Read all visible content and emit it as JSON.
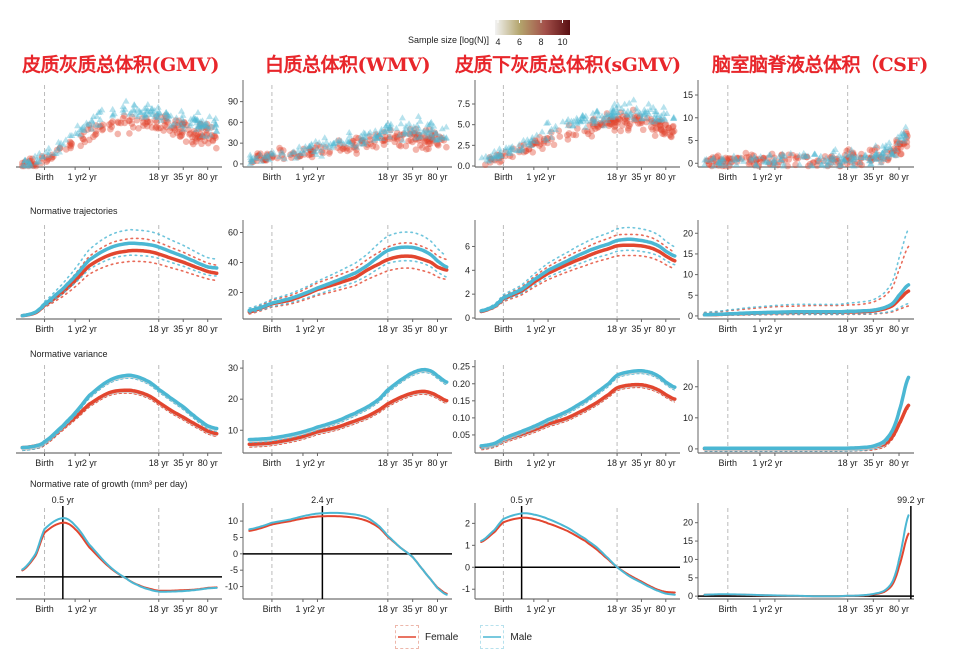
{
  "colors": {
    "female": "#e2462f",
    "male": "#4bb7d3",
    "grid": "#bbbbbb",
    "colorbar": [
      "#f2f2f2",
      "#b3a46c",
      "#a3504a",
      "#5a0f12"
    ]
  },
  "column_titles": [
    "皮质灰质总体积(GMV)",
    "白质总体积(WMV)",
    "皮质下灰质总体积(sGMV)",
    "脑室脑脊液总体积（CSF)"
  ],
  "row_labels": [
    "",
    "Normative trajectories",
    "Normative variance",
    "Normative rate of growth (mm³ per day)"
  ],
  "colorbar": {
    "label": "Sample size [log(N)]",
    "ticks": [
      "4",
      "6",
      "8",
      "10"
    ]
  },
  "legend": {
    "female": "Female",
    "male": "Male"
  },
  "x_ticks": [
    {
      "label": "Birth",
      "age": 0
    },
    {
      "label": "1 yr",
      "age": 1
    },
    {
      "label": "2 yr",
      "age": 2
    },
    {
      "label": "18 yr",
      "age": 18
    },
    {
      "label": "35 yr",
      "age": 35
    },
    {
      "label": "80 yr",
      "age": 80
    }
  ],
  "ages": [
    -0.55,
    -0.3,
    0,
    0.5,
    1,
    2,
    4,
    7,
    10,
    14,
    18,
    25,
    35,
    50,
    65,
    80,
    95
  ],
  "chart_data": [
    {
      "row": 0,
      "col": 0,
      "type": "scatter",
      "ylim": [
        0,
        95
      ],
      "yticks": [],
      "source": "trajectory",
      "ref": 4
    },
    {
      "row": 0,
      "col": 1,
      "type": "scatter",
      "ylim": [
        -3,
        114
      ],
      "yticks": [
        "0",
        "30",
        "60",
        "90"
      ],
      "ytick_values": [
        0,
        30,
        60,
        90
      ],
      "ref": 5
    },
    {
      "row": 0,
      "col": 2,
      "type": "scatter",
      "ylim": [
        0,
        9.8
      ],
      "yticks": [
        "0.0",
        "2.5",
        "5.0",
        "7.5"
      ],
      "ytick_values": [
        0,
        2.5,
        5,
        7.5
      ],
      "ref": 6
    },
    {
      "row": 0,
      "col": 3,
      "type": "scatter",
      "ylim": [
        -0.6,
        17.2
      ],
      "yticks": [
        "0",
        "5",
        "10",
        "15"
      ],
      "ytick_values": [
        0,
        5,
        10,
        15
      ],
      "ref": 7
    },
    {
      "row": 1,
      "col": 0,
      "type": "line",
      "ylim": [
        0,
        80
      ],
      "yticks": [],
      "band": [
        0.84,
        1.18
      ],
      "series": [
        {
          "name": "Female",
          "values": [
            2,
            4.5,
            11,
            22,
            32,
            45,
            54,
            57.5,
            58,
            57,
            55,
            51.5,
            48,
            44.5,
            42,
            40,
            38.5
          ]
        },
        {
          "name": "Male",
          "values": [
            2,
            5,
            12,
            25,
            36,
            50,
            60,
            64,
            64,
            63,
            61,
            57,
            53,
            49,
            46,
            44,
            43
          ]
        }
      ]
    },
    {
      "row": 1,
      "col": 1,
      "type": "line",
      "ylim": [
        3,
        65
      ],
      "yticks": [
        "20",
        "40",
        "60"
      ],
      "ytick_values": [
        20,
        40,
        60
      ],
      "band": [
        0.82,
        1.2
      ],
      "series": [
        {
          "name": "Female",
          "values": [
            7,
            10,
            12.5,
            15,
            18,
            22,
            26,
            30,
            35,
            39,
            42,
            44,
            44,
            42,
            40,
            37,
            35
          ]
        },
        {
          "name": "Male",
          "values": [
            8,
            10.5,
            13,
            16,
            19,
            23,
            28,
            33,
            38,
            44,
            48,
            50,
            50,
            48,
            45,
            41,
            37
          ]
        }
      ]
    },
    {
      "row": 1,
      "col": 2,
      "type": "line",
      "ylim": [
        0,
        7.8
      ],
      "yticks": [
        "0",
        "2",
        "4",
        "6"
      ],
      "ytick_values": [
        0,
        2,
        4,
        6
      ],
      "band": [
        0.86,
        1.15
      ],
      "series": [
        {
          "name": "Female",
          "values": [
            0.55,
            0.95,
            1.6,
            2.25,
            3,
            3.75,
            4.5,
            5.1,
            5.5,
            5.8,
            6.05,
            6.1,
            6.05,
            5.85,
            5.55,
            5.2,
            4.8
          ]
        },
        {
          "name": "Male",
          "values": [
            0.6,
            1,
            1.7,
            2.4,
            3.2,
            4,
            4.8,
            5.5,
            5.9,
            6.2,
            6.5,
            6.6,
            6.5,
            6.3,
            6,
            5.6,
            5.2
          ]
        }
      ]
    },
    {
      "row": 1,
      "col": 3,
      "type": "line",
      "ylim": [
        -0.5,
        22
      ],
      "yticks": [
        "0",
        "5",
        "10",
        "15",
        "20"
      ],
      "ytick_values": [
        0,
        5,
        10,
        15,
        20
      ],
      "band": [
        0.4,
        2.8
      ],
      "series": [
        {
          "name": "Female",
          "values": [
            0.3,
            0.35,
            0.45,
            0.6,
            0.7,
            0.8,
            0.85,
            0.9,
            0.9,
            0.9,
            0.95,
            1,
            1.2,
            1.7,
            2.5,
            4,
            6
          ]
        },
        {
          "name": "Male",
          "values": [
            0.3,
            0.4,
            0.5,
            0.7,
            0.8,
            0.9,
            1,
            1,
            1,
            1,
            1.1,
            1.2,
            1.4,
            2,
            3,
            5,
            7.5
          ]
        }
      ]
    },
    {
      "row": 2,
      "col": 0,
      "type": "line",
      "ylim": [
        0,
        1
      ],
      "yticks": [],
      "series": [
        {
          "name": "Female",
          "values": [
            0.05,
            0.07,
            0.11,
            0.28,
            0.4,
            0.55,
            0.68,
            0.71,
            0.69,
            0.64,
            0.57,
            0.48,
            0.4,
            0.33,
            0.28,
            0.24,
            0.21
          ]
        },
        {
          "name": "Male",
          "values": [
            0.05,
            0.07,
            0.12,
            0.3,
            0.45,
            0.65,
            0.82,
            0.88,
            0.86,
            0.8,
            0.72,
            0.62,
            0.52,
            0.42,
            0.35,
            0.3,
            0.27
          ]
        }
      ]
    },
    {
      "row": 2,
      "col": 1,
      "type": "line",
      "ylim": [
        3,
        31
      ],
      "yticks": [
        "10",
        "20",
        "30"
      ],
      "ytick_values": [
        10,
        20,
        30
      ],
      "series": [
        {
          "name": "Female",
          "values": [
            5.5,
            5.7,
            6,
            7,
            8,
            9.5,
            11,
            13,
            14.5,
            16.5,
            18.5,
            20.5,
            22,
            22.5,
            22,
            21,
            19.5
          ]
        },
        {
          "name": "Male",
          "values": [
            7,
            7.2,
            7.5,
            8.5,
            9.5,
            11,
            13,
            15.5,
            17.5,
            20,
            23,
            26,
            28.5,
            29.5,
            29,
            27.5,
            25.5
          ]
        }
      ]
    },
    {
      "row": 2,
      "col": 2,
      "type": "line",
      "ylim": [
        0,
        0.255
      ],
      "yticks": [
        "0.05",
        "0.10",
        "0.15",
        "0.20",
        "0.25"
      ],
      "ytick_values": [
        0.05,
        0.1,
        0.15,
        0.2,
        0.25
      ],
      "series": [
        {
          "name": "Female",
          "values": [
            0.015,
            0.022,
            0.035,
            0.052,
            0.065,
            0.082,
            0.1,
            0.125,
            0.145,
            0.168,
            0.188,
            0.196,
            0.197,
            0.19,
            0.18,
            0.168,
            0.155
          ]
        },
        {
          "name": "Male",
          "values": [
            0.018,
            0.025,
            0.04,
            0.06,
            0.075,
            0.095,
            0.12,
            0.15,
            0.175,
            0.2,
            0.225,
            0.235,
            0.238,
            0.232,
            0.22,
            0.205,
            0.19
          ]
        }
      ]
    },
    {
      "row": 2,
      "col": 3,
      "type": "line",
      "ylim": [
        -1,
        27
      ],
      "yticks": [
        "0",
        "10",
        "20"
      ],
      "ytick_values": [
        0,
        10,
        20
      ],
      "series": [
        {
          "name": "Female",
          "values": [
            0.1,
            0.1,
            0.1,
            0.1,
            0.1,
            0.1,
            0.1,
            0.1,
            0.1,
            0.1,
            0.2,
            0.3,
            0.6,
            1.5,
            4,
            8,
            14
          ]
        },
        {
          "name": "Male",
          "values": [
            0.2,
            0.2,
            0.2,
            0.2,
            0.2,
            0.2,
            0.2,
            0.2,
            0.2,
            0.2,
            0.25,
            0.4,
            0.9,
            2.5,
            6,
            12,
            23
          ]
        }
      ]
    },
    {
      "row": 3,
      "col": 0,
      "type": "line",
      "ylim": [
        -2.3,
        7.5
      ],
      "yticks": [],
      "peak": {
        "label": "0.5 yr",
        "age": 0.5
      },
      "series": [
        {
          "name": "Female",
          "values": [
            0.7,
            2.3,
            4.8,
            5.9,
            5.2,
            3.2,
            1.1,
            -0.2,
            -0.9,
            -1.3,
            -1.5,
            -1.5,
            -1.45,
            -1.4,
            -1.3,
            -1.2,
            -1.15
          ]
        },
        {
          "name": "Male",
          "values": [
            0.8,
            2.5,
            5.2,
            6.4,
            5.6,
            3.5,
            1.2,
            -0.2,
            -0.95,
            -1.4,
            -1.6,
            -1.6,
            -1.55,
            -1.45,
            -1.35,
            -1.25,
            -1.2
          ]
        }
      ]
    },
    {
      "row": 3,
      "col": 1,
      "type": "line",
      "ylim": [
        -13.5,
        14
      ],
      "yticks": [
        "-10",
        "-5",
        "0",
        "5",
        "10"
      ],
      "ytick_values": [
        -10,
        -5,
        0,
        5,
        10
      ],
      "peak": {
        "label": "2.4 yr",
        "age": 2.4
      },
      "series": [
        {
          "name": "Female",
          "values": [
            7,
            8,
            9,
            10,
            10.8,
            11.4,
            11.5,
            11,
            10,
            8,
            5.2,
            2,
            -1,
            -5,
            -8,
            -10.3,
            -12.2
          ]
        },
        {
          "name": "Male",
          "values": [
            7.5,
            8.5,
            9.5,
            10.5,
            11.5,
            12.3,
            12.5,
            12,
            11,
            8.5,
            5.5,
            2,
            -1,
            -5,
            -8,
            -10.5,
            -12.5
          ]
        }
      ]
    },
    {
      "row": 3,
      "col": 2,
      "type": "line",
      "ylim": [
        -1.4,
        2.7
      ],
      "yticks": [
        "-1",
        "0",
        "1",
        "2"
      ],
      "ytick_values": [
        -1,
        0,
        1,
        2
      ],
      "peak": {
        "label": "0.5 yr",
        "age": 0.5
      },
      "series": [
        {
          "name": "Female",
          "values": [
            1.15,
            1.6,
            2.05,
            2.25,
            2.2,
            2,
            1.65,
            1.2,
            0.8,
            0.35,
            0,
            -0.35,
            -0.65,
            -0.9,
            -1.05,
            -1.12,
            -1.15
          ]
        },
        {
          "name": "Male",
          "values": [
            1.2,
            1.7,
            2.2,
            2.45,
            2.4,
            2.2,
            1.8,
            1.3,
            0.9,
            0.4,
            0,
            -0.4,
            -0.7,
            -0.95,
            -1.1,
            -1.2,
            -1.25
          ]
        }
      ]
    },
    {
      "row": 3,
      "col": 3,
      "type": "line",
      "ylim": [
        -0.5,
        24
      ],
      "yticks": [
        "0",
        "5",
        "10",
        "15",
        "20"
      ],
      "ytick_values": [
        0,
        5,
        10,
        15,
        20
      ],
      "peak": {
        "label": "99.2 yr",
        "age": 99.2
      },
      "series": [
        {
          "name": "Female",
          "values": [
            0.4,
            0.45,
            0.45,
            0.35,
            0.25,
            0.15,
            0.05,
            0,
            0,
            0,
            0.05,
            0.15,
            0.45,
            1.2,
            3.2,
            8,
            17
          ]
        },
        {
          "name": "Male",
          "values": [
            0.4,
            0.5,
            0.5,
            0.4,
            0.3,
            0.2,
            0.1,
            0,
            0,
            0,
            0.1,
            0.2,
            0.6,
            1.5,
            4,
            10,
            22
          ]
        }
      ]
    }
  ]
}
